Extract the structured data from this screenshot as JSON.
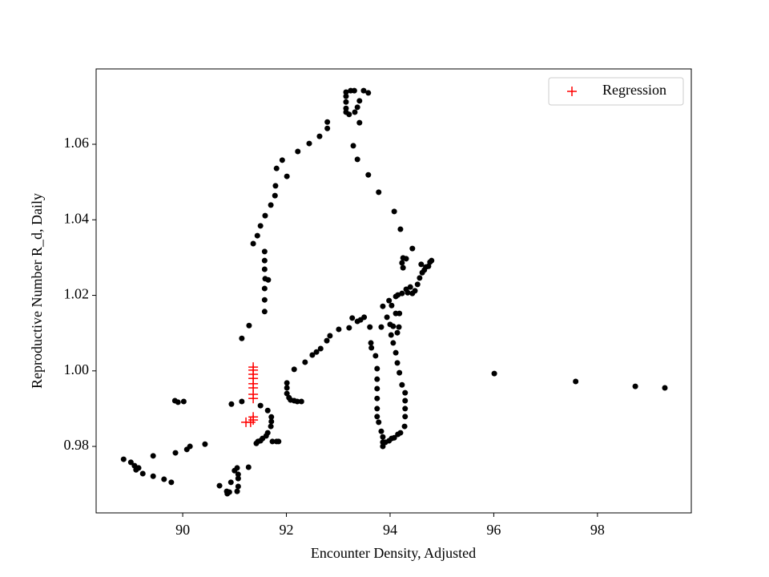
{
  "chart_data": {
    "type": "scatter",
    "xlabel": "Encounter Density, Adjusted",
    "ylabel": "Reproductive Number R_d, Daily",
    "xlim": [
      88.33,
      99.81
    ],
    "ylim": [
      0.9624,
      1.07995
    ],
    "xticks": [
      90,
      92,
      94,
      96,
      98
    ],
    "yticks": [
      0.98,
      {
        "value": 1,
        "label": "1.00"
      },
      1.02,
      1.04,
      1.06
    ],
    "legend": "upper right",
    "series": [
      {
        "color": "#000000",
        "marker": "dot",
        "x": [
          88.86,
          89.0,
          89.07,
          89.1,
          89.15,
          89.23,
          89.43,
          89.43,
          89.64,
          89.78,
          89.86,
          90.08,
          90.14,
          90.43,
          89.85,
          89.91,
          90.02,
          90.94,
          91.14,
          91.14,
          91.28,
          90.71,
          90.85,
          90.86,
          90.9,
          90.93,
          91.0,
          91.05,
          91.07,
          91.07,
          91.07,
          91.05,
          91.27,
          91.42,
          91.45,
          91.5,
          91.54,
          91.61,
          91.64,
          91.7,
          91.71,
          91.71,
          91.64,
          91.5,
          91.73,
          91.81,
          91.85,
          91.36,
          91.44,
          91.5,
          91.59,
          91.7,
          91.78,
          91.79,
          91.81,
          91.92,
          92.01,
          92.22,
          92.44,
          92.64,
          92.79,
          92.79,
          91.58,
          91.58,
          91.58,
          91.59,
          91.65,
          91.58,
          91.58,
          91.58,
          93.15,
          93.15,
          93.15,
          93.15,
          93.15,
          93.21,
          93.24,
          93.31,
          93.32,
          93.37,
          93.41,
          93.49,
          93.58,
          93.41,
          93.29,
          93.37,
          93.58,
          93.78,
          94.08,
          94.2,
          94.43,
          92.01,
          92.01,
          92.01,
          92.05,
          92.08,
          92.15,
          92.21,
          92.29,
          92.15,
          92.36,
          92.5,
          92.58,
          92.66,
          92.78,
          92.84,
          93.01,
          93.21,
          93.27,
          93.37,
          93.43,
          93.5,
          93.61,
          93.83,
          93.94,
          94.0,
          94.06,
          93.86,
          93.98,
          94.03,
          94.11,
          94.18,
          94.11,
          94.15,
          94.23,
          94.31,
          94.34,
          94.39,
          94.43,
          94.48,
          94.53,
          94.57,
          94.62,
          94.66,
          94.69,
          94.74,
          94.77,
          94.8,
          94.6,
          94.23,
          94.25,
          94.31,
          94.25,
          93.63,
          93.64,
          93.72,
          93.75,
          93.75,
          93.75,
          93.75,
          93.75,
          93.75,
          93.78,
          93.83,
          93.86,
          93.86,
          93.86,
          93.91,
          93.98,
          94.03,
          94.08,
          94.15,
          94.2,
          94.28,
          94.29,
          94.29,
          94.29,
          94.29,
          94.23,
          94.18,
          94.14,
          94.11,
          94.06,
          94.02,
          94.14,
          94.17,
          96.01,
          97.58,
          98.73,
          99.3
        ],
        "values": [
          0.9766,
          0.9758,
          0.9749,
          0.9738,
          0.9743,
          0.9728,
          0.9721,
          0.9775,
          0.9713,
          0.9705,
          0.9783,
          0.9792,
          0.98,
          0.9806,
          0.9921,
          0.9917,
          0.9919,
          0.9912,
          0.9919,
          1.0086,
          1.012,
          0.9696,
          0.9681,
          0.9675,
          0.9679,
          0.9705,
          0.9736,
          0.9743,
          0.9726,
          0.9715,
          0.9694,
          0.9681,
          0.9745,
          0.9808,
          0.9813,
          0.9815,
          0.9821,
          0.9828,
          0.9836,
          0.9853,
          0.9866,
          0.9878,
          0.9895,
          0.9908,
          0.9813,
          0.9813,
          0.9813,
          1.0337,
          1.0358,
          1.0384,
          1.0411,
          1.0439,
          1.0464,
          1.049,
          1.0536,
          1.0558,
          1.0515,
          1.0581,
          1.0602,
          1.0621,
          1.0642,
          1.0659,
          1.0316,
          1.0292,
          1.0269,
          1.0244,
          1.0241,
          1.0218,
          1.0188,
          1.0157,
          1.0738,
          1.0727,
          1.0712,
          1.0695,
          1.0685,
          1.0679,
          1.0742,
          1.0742,
          1.0685,
          1.0698,
          1.0715,
          1.0742,
          1.0736,
          1.0657,
          1.0596,
          1.056,
          1.0519,
          1.0473,
          1.0422,
          1.0375,
          1.0324,
          0.9968,
          0.9955,
          0.994,
          0.9929,
          0.9923,
          0.9921,
          0.9919,
          0.9919,
          1.0004,
          1.0023,
          1.0042,
          1.005,
          1.0059,
          1.008,
          1.0093,
          1.011,
          1.0114,
          1.014,
          1.0131,
          1.0135,
          1.0142,
          1.0116,
          1.0116,
          1.0142,
          1.0123,
          1.0118,
          1.0171,
          1.0186,
          1.0173,
          1.0152,
          1.0152,
          1.0197,
          1.0201,
          1.0205,
          1.0216,
          1.0207,
          1.0222,
          1.0205,
          1.0212,
          1.0229,
          1.0246,
          1.026,
          1.0267,
          1.0275,
          1.0277,
          1.0288,
          1.0292,
          1.0282,
          1.0286,
          1.0299,
          1.0297,
          1.0273,
          1.0074,
          1.0061,
          1.004,
          1.0006,
          0.9978,
          0.9953,
          0.9927,
          0.99,
          0.9879,
          0.9864,
          0.984,
          0.9825,
          0.9811,
          0.98,
          0.9811,
          0.9815,
          0.9821,
          0.9823,
          0.9832,
          0.9836,
          0.9853,
          0.9879,
          0.99,
          0.9921,
          0.9942,
          0.9963,
          0.9995,
          1.0021,
          1.0048,
          1.0074,
          1.0095,
          1.0101,
          1.0116,
          0.9993,
          0.9972,
          0.9959,
          0.9955
        ]
      },
      {
        "name": "Regression",
        "color": "#ff0000",
        "marker": "plus",
        "x": [
          91.22,
          91.31,
          91.36,
          91.36,
          91.36,
          91.36,
          91.36,
          91.36,
          91.36,
          91.36,
          91.36,
          91.36
        ],
        "values": [
          0.9864,
          0.9864,
          0.987,
          0.9878,
          0.9927,
          0.9938,
          0.9955,
          0.9966,
          0.998,
          0.9991,
          1.0002,
          1.001
        ]
      }
    ]
  }
}
